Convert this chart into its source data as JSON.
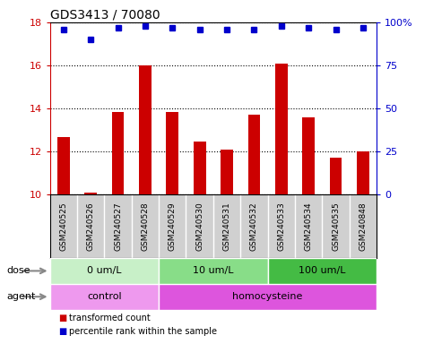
{
  "title": "GDS3413 / 70080",
  "samples": [
    "GSM240525",
    "GSM240526",
    "GSM240527",
    "GSM240528",
    "GSM240529",
    "GSM240530",
    "GSM240531",
    "GSM240532",
    "GSM240533",
    "GSM240534",
    "GSM240535",
    "GSM240848"
  ],
  "transformed_count": [
    12.65,
    10.1,
    13.85,
    16.0,
    13.85,
    12.45,
    12.1,
    13.7,
    16.1,
    13.6,
    11.7,
    12.0
  ],
  "percentile_rank": [
    96,
    90,
    97,
    98,
    97,
    96,
    96,
    96,
    98,
    97,
    96,
    97
  ],
  "bar_color": "#cc0000",
  "dot_color": "#0000cc",
  "ylim_left": [
    10,
    18
  ],
  "ylim_right": [
    0,
    100
  ],
  "yticks_left": [
    10,
    12,
    14,
    16,
    18
  ],
  "yticks_right": [
    0,
    25,
    50,
    75,
    100
  ],
  "ytick_labels_right": [
    "0",
    "25",
    "50",
    "75",
    "100%"
  ],
  "dose_groups": [
    {
      "label": "0 um/L",
      "start": 0,
      "end": 4,
      "color": "#c8f0c8"
    },
    {
      "label": "10 um/L",
      "start": 4,
      "end": 8,
      "color": "#88dd88"
    },
    {
      "label": "100 um/L",
      "start": 8,
      "end": 12,
      "color": "#44bb44"
    }
  ],
  "agent_groups": [
    {
      "label": "control",
      "start": 0,
      "end": 4,
      "color": "#ee99ee"
    },
    {
      "label": "homocysteine",
      "start": 4,
      "end": 12,
      "color": "#dd55dd"
    }
  ],
  "legend_items": [
    {
      "color": "#cc0000",
      "label": "transformed count"
    },
    {
      "color": "#0000cc",
      "label": "percentile rank within the sample"
    }
  ],
  "left_label_color": "#cc0000",
  "right_label_color": "#0000cc",
  "background_color": "#ffffff",
  "plot_bg_color": "#ffffff",
  "sample_bg_color": "#d0d0d0",
  "arrow_color": "#888888"
}
